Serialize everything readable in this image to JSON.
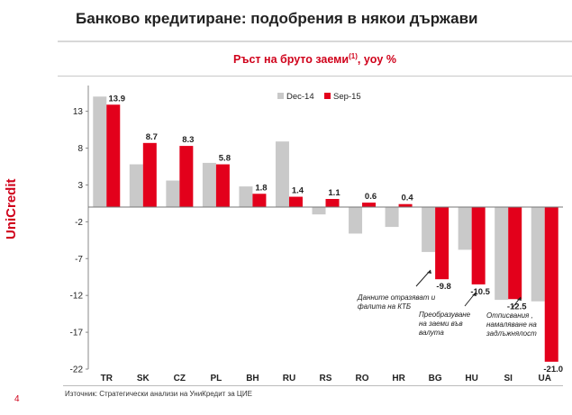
{
  "page": {
    "title": "Банково кредитиране: подобрения в някои държави",
    "page_number": "4",
    "source": "Източник: Стратегически анализи на УниКредит за ЦИЕ",
    "brand": "UniCredit"
  },
  "colors": {
    "accent": "#d0021b",
    "series_dec14": "#c9c9c9",
    "series_sep15": "#e3001b"
  },
  "chart_data": {
    "type": "bar",
    "title": "Ръст на бруто заеми",
    "title_superscript": "(1)",
    "title_suffix": ", yoy %",
    "categories": [
      "TR",
      "SK",
      "CZ",
      "PL",
      "BH",
      "RU",
      "RS",
      "RO",
      "HR",
      "BG",
      "HU",
      "SI",
      "UA"
    ],
    "series": [
      {
        "name": "Dec-14",
        "values": [
          15.0,
          5.8,
          3.6,
          6.0,
          2.8,
          8.9,
          -1.0,
          -3.6,
          -2.7,
          -6.1,
          -5.8,
          -12.6,
          -12.8
        ],
        "labeled": false
      },
      {
        "name": "Sep-15",
        "values": [
          13.9,
          8.7,
          8.3,
          5.8,
          1.8,
          1.4,
          1.1,
          0.6,
          0.4,
          -9.8,
          -10.5,
          -12.5,
          -21.0
        ],
        "labeled": true
      }
    ],
    "data_labels": [
      "13.9",
      "8.7",
      "8.3",
      "5.8",
      "1.8",
      "1.4",
      "1.1",
      "0.6",
      "0.4",
      "-9.8",
      "-10.5",
      "-12.5",
      "-21.0"
    ],
    "yticks": [
      13,
      8,
      3,
      -2,
      -7,
      -12,
      -17,
      -22
    ],
    "ytick_labels": [
      "13",
      "8",
      "3",
      "-2",
      "-7",
      "-12",
      "-17",
      "-22"
    ],
    "ylim": [
      -22,
      16.5
    ],
    "legend_position": "top-right",
    "grid": false,
    "annotations": [
      {
        "category": "BG",
        "lines": [
          "Данните отразяват и",
          "фалита на КТБ"
        ]
      },
      {
        "category": "HU",
        "lines": [
          "Преобразуване",
          "на заеми във",
          "валута"
        ]
      },
      {
        "category": "SI",
        "lines": [
          "Отписвания ,",
          "намаляване на",
          "задлъжнялост"
        ]
      }
    ]
  }
}
